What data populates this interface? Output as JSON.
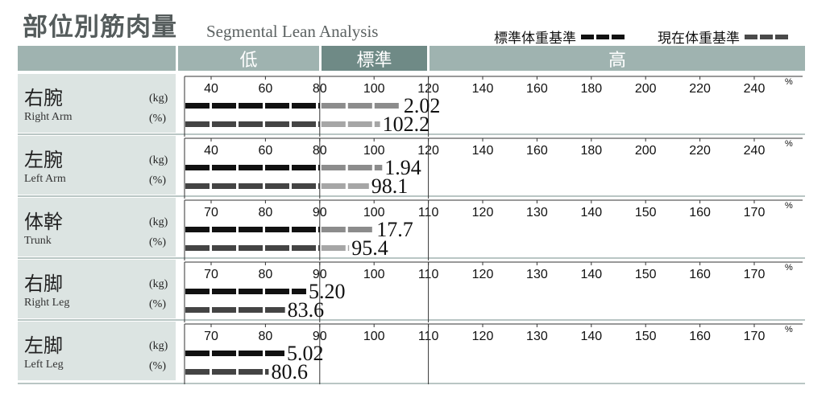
{
  "title": {
    "main": "部位別筋肉量",
    "sub": "Segmental Lean Analysis"
  },
  "legend": [
    {
      "label": "標準体重基準",
      "color": "#111111"
    },
    {
      "label": "現在体重基準",
      "color": "#4a4a4a"
    }
  ],
  "header": {
    "low": "低",
    "standard": "標準",
    "high": "高"
  },
  "colors": {
    "kg_dark": "#111111",
    "kg_light": "#8c8c8c",
    "pct_dark": "#444444",
    "pct_light": "#a6a6a6",
    "header": "#9fb3b0",
    "header_std": "#6f8a86",
    "label_bg": "#dce4e2"
  },
  "chart_data": [
    {
      "type": "bar",
      "segment": "右腕",
      "segment_en": "Right Arm",
      "units": [
        "(kg)",
        "(%)"
      ],
      "percent_symbol": "%",
      "ticks": [
        40,
        60,
        80,
        100,
        120,
        140,
        160,
        180,
        200,
        220,
        240
      ],
      "xlim": [
        30,
        250
      ],
      "standard_range": [
        80,
        120
      ],
      "kg_bar_percent": 110,
      "kg_value": "2.02",
      "pct_value": 102.2,
      "pct_label": "102.2"
    },
    {
      "type": "bar",
      "segment": "左腕",
      "segment_en": "Left Arm",
      "units": [
        "(kg)",
        "(%)"
      ],
      "percent_symbol": "%",
      "ticks": [
        40,
        60,
        80,
        100,
        120,
        140,
        160,
        180,
        200,
        220,
        240
      ],
      "xlim": [
        30,
        250
      ],
      "standard_range": [
        80,
        120
      ],
      "kg_bar_percent": 103,
      "kg_value": "1.94",
      "pct_value": 98.1,
      "pct_label": "98.1"
    },
    {
      "type": "bar",
      "segment": "体幹",
      "segment_en": "Trunk",
      "units": [
        "(kg)",
        "(%)"
      ],
      "percent_symbol": "%",
      "ticks": [
        70,
        80,
        90,
        100,
        110,
        120,
        130,
        140,
        150,
        160,
        170
      ],
      "xlim": [
        65,
        175
      ],
      "standard_range": [
        90,
        110
      ],
      "kg_bar_percent": 100,
      "kg_value": "17.7",
      "pct_value": 95.4,
      "pct_label": "95.4"
    },
    {
      "type": "bar",
      "segment": "右脚",
      "segment_en": "Right Leg",
      "units": [
        "(kg)",
        "(%)"
      ],
      "percent_symbol": "%",
      "ticks": [
        70,
        80,
        90,
        100,
        110,
        120,
        130,
        140,
        150,
        160,
        170
      ],
      "xlim": [
        65,
        175
      ],
      "standard_range": [
        90,
        110
      ],
      "kg_bar_percent": 87.5,
      "kg_value": "5.20",
      "pct_value": 83.6,
      "pct_label": "83.6"
    },
    {
      "type": "bar",
      "segment": "左脚",
      "segment_en": "Left Leg",
      "units": [
        "(kg)",
        "(%)"
      ],
      "percent_symbol": "%",
      "ticks": [
        70,
        80,
        90,
        100,
        110,
        120,
        130,
        140,
        150,
        160,
        170
      ],
      "xlim": [
        65,
        175
      ],
      "standard_range": [
        90,
        110
      ],
      "kg_bar_percent": 83.5,
      "kg_value": "5.02",
      "pct_value": 80.6,
      "pct_label": "80.6"
    }
  ]
}
